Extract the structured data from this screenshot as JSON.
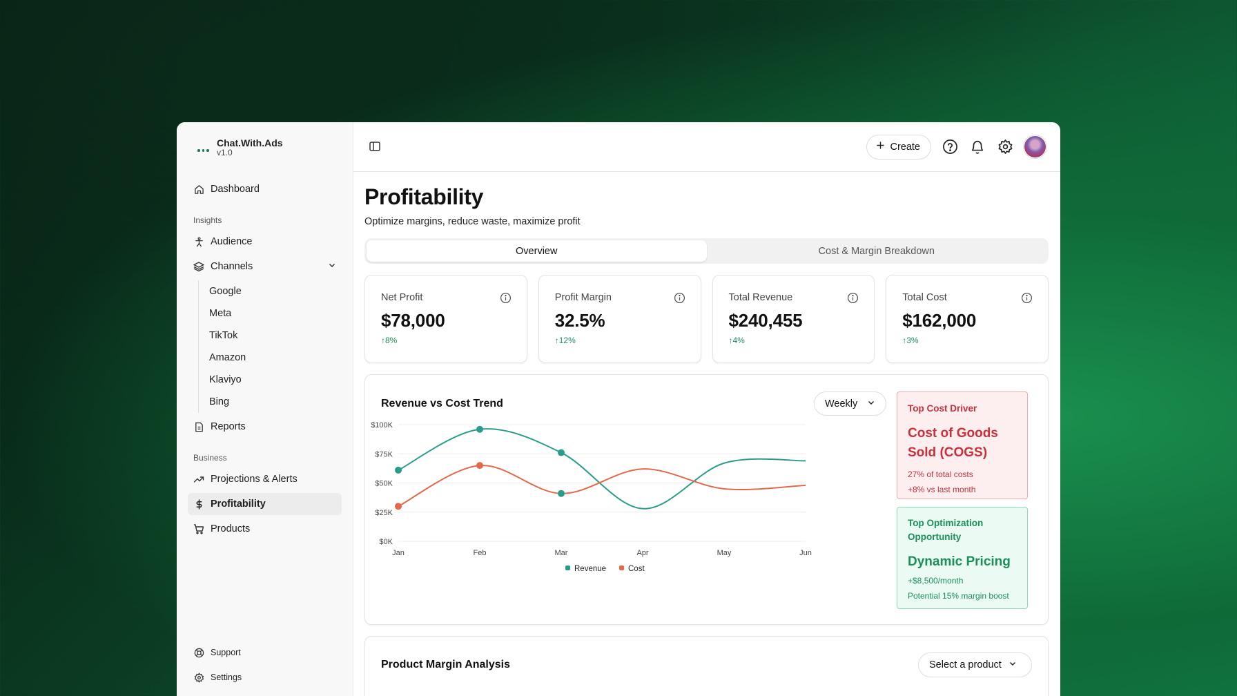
{
  "app": {
    "name": "Chat.With.Ads",
    "version": "v1.0"
  },
  "sidebar": {
    "dashboard": "Dashboard",
    "insights_label": "Insights",
    "audience": "Audience",
    "channels": "Channels",
    "channel_items": [
      "Google",
      "Meta",
      "TikTok",
      "Amazon",
      "Klaviyo",
      "Bing"
    ],
    "reports": "Reports",
    "business_label": "Business",
    "projections": "Projections & Alerts",
    "profitability": "Profitability",
    "products": "Products",
    "support": "Support",
    "settings": "Settings"
  },
  "topbar": {
    "create": "Create"
  },
  "page": {
    "title": "Profitability",
    "subtitle": "Optimize margins, reduce waste, maximize profit",
    "tabs": [
      "Overview",
      "Cost & Margin Breakdown"
    ]
  },
  "kpis": [
    {
      "label": "Net Profit",
      "value": "$78,000",
      "delta": "↑8%"
    },
    {
      "label": "Profit Margin",
      "value": "32.5%",
      "delta": "↑12%"
    },
    {
      "label": "Total Revenue",
      "value": "$240,455",
      "delta": "↑4%"
    },
    {
      "label": "Total Cost",
      "value": "$162,000",
      "delta": "↑3%"
    }
  ],
  "trend": {
    "title": "Revenue vs Cost Trend",
    "period": "Weekly"
  },
  "chart_data": {
    "type": "line",
    "x": [
      "Jan",
      "Feb",
      "Mar",
      "Apr",
      "May",
      "Jun"
    ],
    "y_ticks": [
      "$0K",
      "$25K",
      "$50K",
      "$75K",
      "$100K"
    ],
    "ylim": [
      0,
      100000
    ],
    "series": [
      {
        "name": "Revenue",
        "color": "#2a9d8a",
        "values": [
          61000,
          96000,
          76000,
          28000,
          67000,
          69000
        ],
        "markers": [
          0,
          1,
          2
        ]
      },
      {
        "name": "Cost",
        "color": "#e2694a",
        "values": [
          30000,
          65000,
          41000,
          62000,
          45000,
          48000
        ],
        "markers": [
          0,
          1
        ]
      }
    ],
    "extra_points": [
      {
        "series": "Revenue",
        "x": "Mar",
        "y": 41000
      }
    ],
    "legend": "bottom-center",
    "grid": true
  },
  "insights": {
    "cost_driver": {
      "heading": "Top Cost Driver",
      "title": "Cost of Goods Sold (COGS)",
      "line1": "27% of total costs",
      "line2": "+8% vs last month"
    },
    "opportunity": {
      "heading": "Top Optimization Opportunity",
      "title": "Dynamic Pricing",
      "line1": "+$8,500/month",
      "line2": "Potential 15% margin boost"
    }
  },
  "margin": {
    "title": "Product Margin Analysis",
    "select": "Select a product"
  }
}
